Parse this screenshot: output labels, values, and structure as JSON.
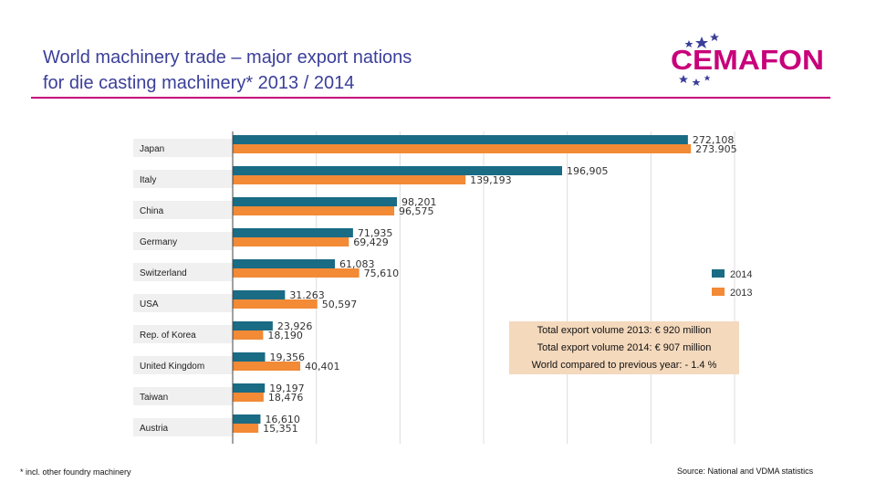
{
  "header": {
    "title_line1": "World machinery trade – major export nations",
    "title_line2": "for die casting machinery*  2013 / 2014",
    "logo_text": "CEMAFON"
  },
  "colors": {
    "series_2014": "#1a6b84",
    "series_2013": "#f28a36",
    "accent": "#c8007a",
    "title": "#3b3f99"
  },
  "chart_data": {
    "type": "bar",
    "orientation": "horizontal",
    "categories": [
      "Japan",
      "Italy",
      "China",
      "Germany",
      "Switzerland",
      "USA",
      "Rep. of Korea",
      "United Kingdom",
      "Taiwan",
      "Austria"
    ],
    "series": [
      {
        "name": "2014",
        "values": [
          272108,
          196905,
          98201,
          71935,
          61083,
          31263,
          23926,
          19356,
          19197,
          16610
        ],
        "labels": [
          "272,108",
          "196,905",
          "98,201",
          "71,935",
          "61,083",
          "31.263",
          "23,926",
          "19,356",
          "19,197",
          "16,610"
        ]
      },
      {
        "name": "2013",
        "values": [
          273905,
          139193,
          96575,
          69429,
          75610,
          50597,
          18190,
          40401,
          18476,
          15351
        ],
        "labels": [
          "273.905",
          "139,193",
          "96,575",
          "69,429",
          "75,610",
          "50,597",
          "18,190",
          "40,401",
          "18,476",
          "15,351"
        ]
      }
    ],
    "xlim": [
      0,
      300000
    ],
    "legend": [
      "2014",
      "2013"
    ],
    "grid": true
  },
  "info_box": {
    "line1": "Total export volume 2013: € 920 million",
    "line2": "Total export volume 2014: € 907 million",
    "line3": "World compared to previous year: - 1.4 %"
  },
  "footnote": "* incl. other foundry machinery",
  "source": "Source: National and VDMA statistics"
}
